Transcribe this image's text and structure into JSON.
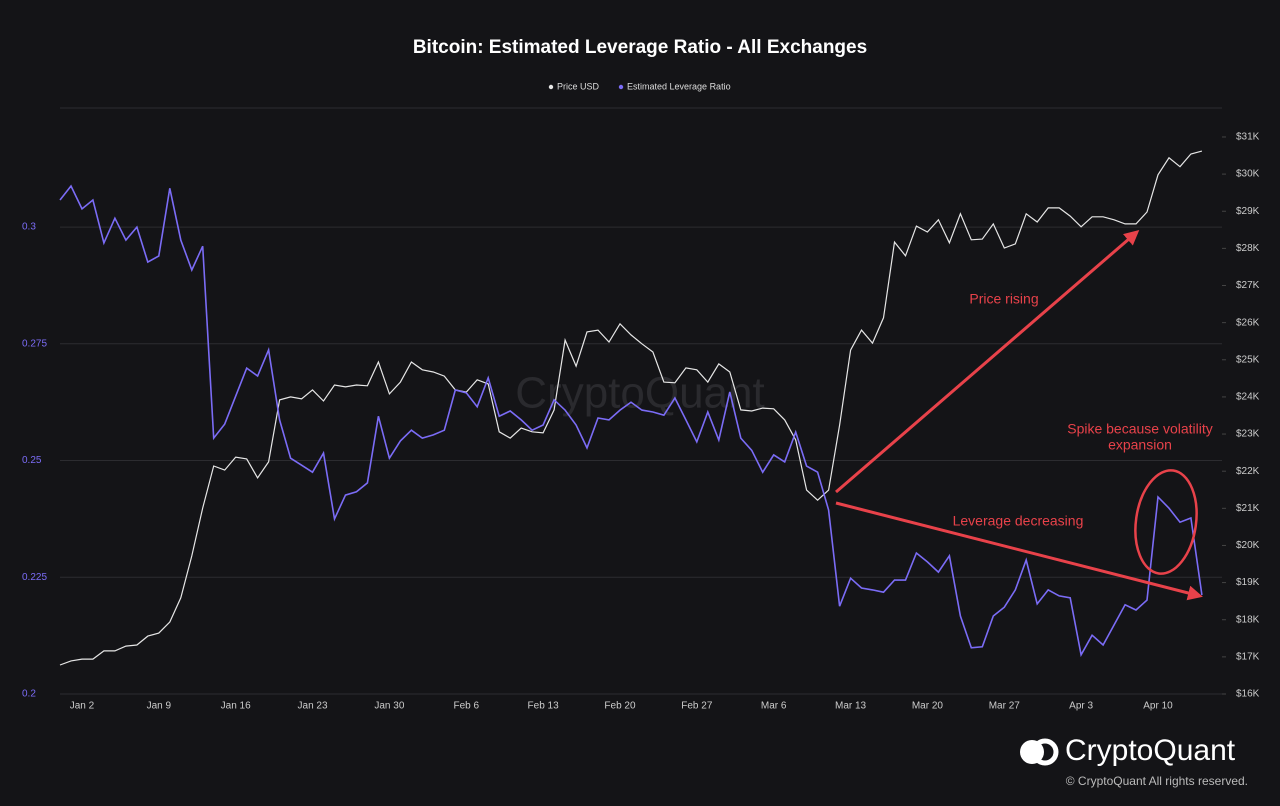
{
  "chart_data": {
    "type": "line",
    "title": "Bitcoin: Estimated Leverage Ratio - All Exchanges",
    "categories": [
      null,
      null,
      "Jan 2",
      null,
      null,
      null,
      null,
      null,
      null,
      "Jan 9",
      null,
      null,
      null,
      null,
      null,
      null,
      "Jan 16",
      null,
      null,
      null,
      null,
      null,
      null,
      "Jan 23",
      null,
      null,
      null,
      null,
      null,
      null,
      "Jan 30",
      null,
      null,
      null,
      null,
      null,
      null,
      "Feb 6",
      null,
      null,
      null,
      null,
      null,
      null,
      "Feb 13",
      null,
      null,
      null,
      null,
      null,
      null,
      "Feb 20",
      null,
      null,
      null,
      null,
      null,
      null,
      "Feb 27",
      null,
      null,
      null,
      null,
      null,
      null,
      "Mar 6",
      null,
      null,
      null,
      null,
      null,
      null,
      "Mar 13",
      null,
      null,
      null,
      null,
      null,
      null,
      "Mar 20",
      null,
      null,
      null,
      null,
      null,
      null,
      "Mar 27",
      null,
      null,
      null,
      null,
      null,
      null,
      "Apr 3",
      null,
      null,
      null,
      null,
      null,
      null,
      "Apr 10",
      null,
      null,
      null,
      null
    ],
    "series": [
      {
        "name": "Price USD",
        "color": "#e6e6e6",
        "axis": "y2",
        "values": [
          16780,
          16890,
          16940,
          16940,
          17160,
          17160,
          17290,
          17320,
          17560,
          17640,
          17940,
          18590,
          19720,
          21010,
          22140,
          22030,
          22380,
          22330,
          21820,
          22250,
          23920,
          24000,
          23950,
          24190,
          23890,
          24320,
          24270,
          24320,
          24300,
          24940,
          24080,
          24400,
          24940,
          24730,
          24670,
          24560,
          24190,
          24130,
          24460,
          24350,
          23060,
          22890,
          23160,
          23060,
          23030,
          23650,
          25530,
          24830,
          25750,
          25800,
          25480,
          25970,
          25670,
          25430,
          25210,
          24400,
          24380,
          24780,
          24730,
          24400,
          24890,
          24670,
          23650,
          23620,
          23700,
          23680,
          23380,
          22840,
          21490,
          21220,
          21490,
          23240,
          25260,
          25800,
          25450,
          26130,
          28170,
          27800,
          28600,
          28440,
          28770,
          28150,
          28930,
          28230,
          28250,
          28660,
          28010,
          28120,
          28930,
          28710,
          29090,
          29090,
          28870,
          28580,
          28850,
          28850,
          28770,
          28660,
          28660,
          28980,
          29980,
          30440,
          30200,
          30540,
          30620
        ]
      },
      {
        "name": "Estimated Leverage Ratio",
        "color": "#7b6cf6",
        "axis": "y",
        "values": [
          0.3058,
          0.3088,
          0.3039,
          0.3058,
          0.2966,
          0.3019,
          0.2972,
          0.3,
          0.2925,
          0.2938,
          0.3083,
          0.2972,
          0.2908,
          0.2959,
          0.2548,
          0.2578,
          0.2638,
          0.2698,
          0.2681,
          0.2737,
          0.2587,
          0.2505,
          0.249,
          0.2475,
          0.2516,
          0.2375,
          0.2426,
          0.2433,
          0.2452,
          0.2595,
          0.2505,
          0.2542,
          0.2565,
          0.2548,
          0.2555,
          0.2565,
          0.2651,
          0.2645,
          0.2615,
          0.2677,
          0.2595,
          0.2606,
          0.2587,
          0.2565,
          0.2576,
          0.263,
          0.2608,
          0.2576,
          0.2527,
          0.2591,
          0.2587,
          0.2608,
          0.2625,
          0.2608,
          0.2604,
          0.2597,
          0.2634,
          0.2587,
          0.254,
          0.2604,
          0.2544,
          0.2647,
          0.2548,
          0.2522,
          0.2475,
          0.2512,
          0.2497,
          0.2561,
          0.2488,
          0.2475,
          0.2394,
          0.2188,
          0.2248,
          0.2227,
          0.2223,
          0.2218,
          0.2244,
          0.2244,
          0.2302,
          0.2283,
          0.2261,
          0.2296,
          0.2167,
          0.2099,
          0.2101,
          0.2167,
          0.2186,
          0.2223,
          0.2287,
          0.2193,
          0.2223,
          0.221,
          0.2206,
          0.2084,
          0.2126,
          0.2105,
          0.2148,
          0.2191,
          0.218,
          0.2201,
          0.2422,
          0.2398,
          0.2368,
          0.2377,
          0.2212
        ]
      }
    ],
    "ylim": [
      0.2,
      0.3255
    ],
    "yticks": [
      0.2,
      0.225,
      0.25,
      0.275,
      0.3
    ],
    "y2lim": [
      16000,
      31780
    ],
    "y2ticks": [
      {
        "value": 16000,
        "label": "$16K"
      },
      {
        "value": 17000,
        "label": "$17K"
      },
      {
        "value": 18000,
        "label": "$18K"
      },
      {
        "value": 19000,
        "label": "$19K"
      },
      {
        "value": 20000,
        "label": "$20K"
      },
      {
        "value": 21000,
        "label": "$21K"
      },
      {
        "value": 22000,
        "label": "$22K"
      },
      {
        "value": 23000,
        "label": "$23K"
      },
      {
        "value": 24000,
        "label": "$24K"
      },
      {
        "value": 25000,
        "label": "$25K"
      },
      {
        "value": 26000,
        "label": "$26K"
      },
      {
        "value": 27000,
        "label": "$27K"
      },
      {
        "value": 28000,
        "label": "$28K"
      },
      {
        "value": 29000,
        "label": "$29K"
      },
      {
        "value": 30000,
        "label": "$30K"
      },
      {
        "value": 31000,
        "label": "$31K"
      }
    ],
    "grid": true,
    "legend": "top",
    "annotations": [
      {
        "text": "Price rising"
      },
      {
        "text": "Leverage decreasing"
      },
      {
        "lines": [
          "Spike because volatility",
          "expansion"
        ]
      }
    ],
    "watermark": "CryptoQuant",
    "brand": "CryptoQuant",
    "copyright": "© CryptoQuant All rights reserved."
  }
}
